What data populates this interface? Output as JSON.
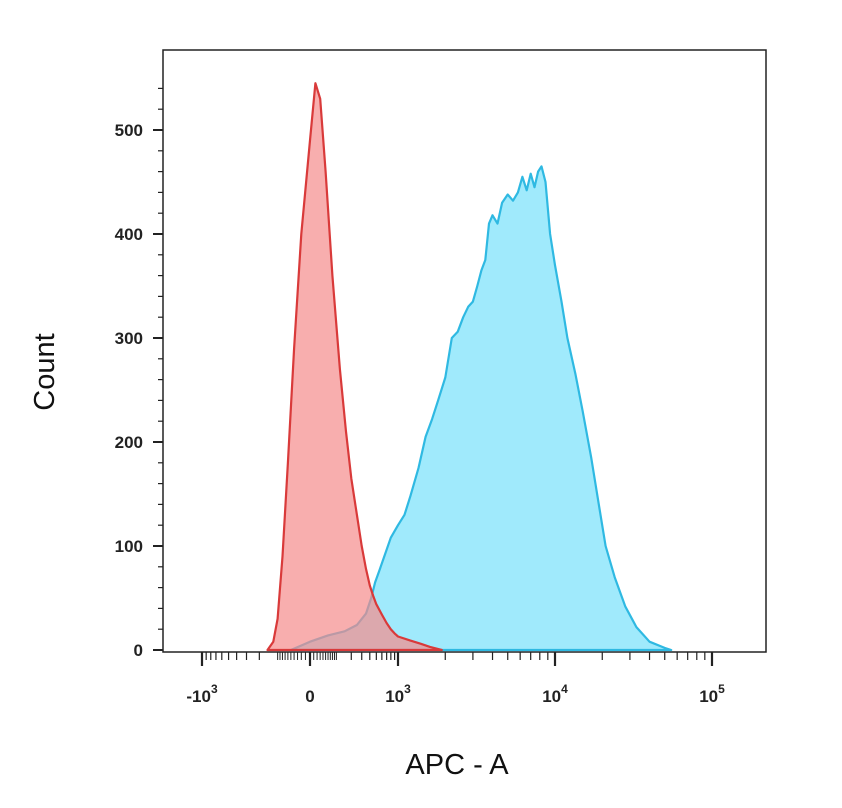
{
  "chart_data": {
    "type": "area",
    "title": "",
    "xlabel": "APC - A",
    "ylabel": "Count",
    "x_scale": "biexponential",
    "ylim": [
      0,
      560
    ],
    "y_ticks": [
      0,
      100,
      200,
      300,
      400,
      500
    ],
    "x_ticks": [
      {
        "base": "-10",
        "exp": "3",
        "value": -1000
      },
      {
        "base": "0",
        "exp": "",
        "value": 0
      },
      {
        "base": "10",
        "exp": "3",
        "value": 1000
      },
      {
        "base": "10",
        "exp": "4",
        "value": 10000
      },
      {
        "base": "10",
        "exp": "5",
        "value": 100000
      }
    ],
    "grid": false,
    "legend": "none",
    "series": [
      {
        "color_fill": "#f58b8b",
        "color_line": "#d93a3a",
        "points": [
          [
            -150,
            0
          ],
          [
            -120,
            8
          ],
          [
            -100,
            30
          ],
          [
            -80,
            90
          ],
          [
            -60,
            180
          ],
          [
            -40,
            290
          ],
          [
            -20,
            400
          ],
          [
            0,
            490
          ],
          [
            15,
            545
          ],
          [
            30,
            530
          ],
          [
            50,
            460
          ],
          [
            80,
            360
          ],
          [
            120,
            270
          ],
          [
            160,
            210
          ],
          [
            200,
            165
          ],
          [
            250,
            130
          ],
          [
            300,
            100
          ],
          [
            350,
            78
          ],
          [
            400,
            62
          ],
          [
            450,
            52
          ],
          [
            500,
            44
          ],
          [
            600,
            34
          ],
          [
            700,
            26
          ],
          [
            800,
            20
          ],
          [
            900,
            16
          ],
          [
            1000,
            13
          ],
          [
            1200,
            9
          ],
          [
            1400,
            6
          ],
          [
            1600,
            3
          ],
          [
            1900,
            0
          ]
        ]
      },
      {
        "color_fill": "#9be9fc",
        "color_line": "#2fb9e2",
        "points": [
          [
            -50,
            0
          ],
          [
            0,
            8
          ],
          [
            60,
            14
          ],
          [
            150,
            18
          ],
          [
            250,
            24
          ],
          [
            350,
            35
          ],
          [
            420,
            50
          ],
          [
            480,
            65
          ],
          [
            550,
            76
          ],
          [
            650,
            90
          ],
          [
            800,
            108
          ],
          [
            1000,
            120
          ],
          [
            1100,
            130
          ],
          [
            1200,
            148
          ],
          [
            1350,
            175
          ],
          [
            1500,
            205
          ],
          [
            1650,
            222
          ],
          [
            1800,
            240
          ],
          [
            2000,
            262
          ],
          [
            2200,
            300
          ],
          [
            2400,
            306
          ],
          [
            2600,
            320
          ],
          [
            2800,
            330
          ],
          [
            3000,
            335
          ],
          [
            3200,
            350
          ],
          [
            3400,
            365
          ],
          [
            3600,
            375
          ],
          [
            3800,
            410
          ],
          [
            4000,
            418
          ],
          [
            4300,
            410
          ],
          [
            4600,
            430
          ],
          [
            5000,
            438
          ],
          [
            5400,
            432
          ],
          [
            5800,
            440
          ],
          [
            6200,
            455
          ],
          [
            6600,
            442
          ],
          [
            7000,
            458
          ],
          [
            7400,
            445
          ],
          [
            7800,
            460
          ],
          [
            8200,
            465
          ],
          [
            8700,
            450
          ],
          [
            9300,
            400
          ],
          [
            10000,
            370
          ],
          [
            11000,
            335
          ],
          [
            12000,
            300
          ],
          [
            13500,
            265
          ],
          [
            15000,
            230
          ],
          [
            17000,
            185
          ],
          [
            19000,
            140
          ],
          [
            21000,
            100
          ],
          [
            24000,
            70
          ],
          [
            28000,
            42
          ],
          [
            33000,
            22
          ],
          [
            40000,
            8
          ],
          [
            50000,
            2
          ],
          [
            55000,
            0
          ]
        ]
      }
    ]
  }
}
